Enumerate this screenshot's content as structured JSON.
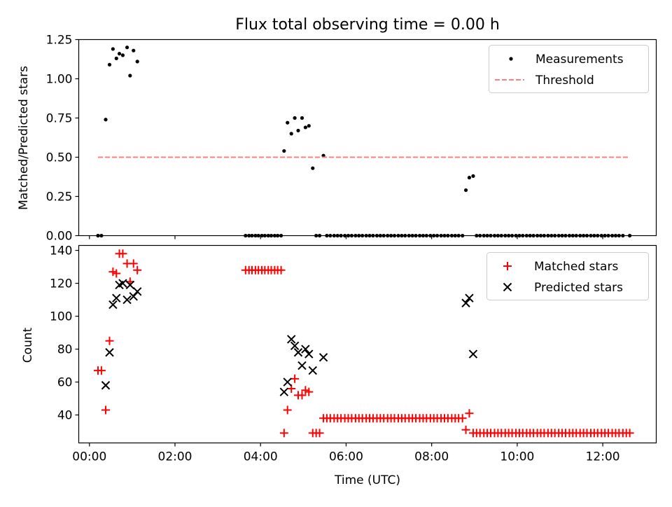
{
  "chart_data": [
    {
      "type": "scatter",
      "title": "Flux total observing time = 0.00 h",
      "xlabel": "",
      "ylabel": "Matched/Predicted stars",
      "xlim": [
        -0.25,
        13.25
      ],
      "ylim": [
        0,
        1.25
      ],
      "x_tick_values": [
        0,
        2,
        4,
        6,
        8,
        10,
        12
      ],
      "y_ticks": [
        "0.00",
        "0.25",
        "0.50",
        "0.75",
        "1.00",
        "1.25"
      ],
      "y_tick_values": [
        0,
        0.25,
        0.5,
        0.75,
        1.0,
        1.25
      ],
      "legend_position": "top-right",
      "series": [
        {
          "name": "Measurements",
          "marker": "dot",
          "color": "#000000",
          "points": [
            [
              0.2,
              0
            ],
            [
              0.28,
              0
            ],
            [
              0.38,
              0.74
            ],
            [
              0.47,
              1.09
            ],
            [
              0.55,
              1.19
            ],
            [
              0.63,
              1.13
            ],
            [
              0.7,
              1.16
            ],
            [
              0.78,
              1.15
            ],
            [
              0.88,
              1.2
            ],
            [
              0.95,
              1.02
            ],
            [
              1.03,
              1.18
            ],
            [
              1.12,
              1.11
            ],
            [
              3.65,
              0
            ],
            [
              3.73,
              0
            ],
            [
              3.8,
              0
            ],
            [
              3.88,
              0
            ],
            [
              3.95,
              0
            ],
            [
              4.03,
              0
            ],
            [
              4.1,
              0
            ],
            [
              4.18,
              0
            ],
            [
              4.25,
              0
            ],
            [
              4.33,
              0
            ],
            [
              4.4,
              0
            ],
            [
              4.48,
              0
            ],
            [
              4.55,
              0.54
            ],
            [
              4.63,
              0.72
            ],
            [
              4.72,
              0.65
            ],
            [
              4.8,
              0.75
            ],
            [
              4.88,
              0.67
            ],
            [
              4.97,
              0.75
            ],
            [
              5.05,
              0.69
            ],
            [
              5.13,
              0.7
            ],
            [
              5.22,
              0.43
            ],
            [
              5.3,
              0
            ],
            [
              5.38,
              0
            ],
            [
              5.47,
              0.51
            ],
            [
              5.55,
              0
            ],
            [
              5.63,
              0
            ],
            [
              5.72,
              0
            ],
            [
              5.8,
              0
            ],
            [
              5.88,
              0
            ],
            [
              5.97,
              0
            ],
            [
              6.05,
              0
            ],
            [
              6.13,
              0
            ],
            [
              6.22,
              0
            ],
            [
              6.3,
              0
            ],
            [
              6.38,
              0
            ],
            [
              6.47,
              0
            ],
            [
              6.55,
              0
            ],
            [
              6.63,
              0
            ],
            [
              6.72,
              0
            ],
            [
              6.8,
              0
            ],
            [
              6.88,
              0
            ],
            [
              6.97,
              0
            ],
            [
              7.05,
              0
            ],
            [
              7.13,
              0
            ],
            [
              7.22,
              0
            ],
            [
              7.3,
              0
            ],
            [
              7.38,
              0
            ],
            [
              7.47,
              0
            ],
            [
              7.55,
              0
            ],
            [
              7.63,
              0
            ],
            [
              7.72,
              0
            ],
            [
              7.8,
              0
            ],
            [
              7.88,
              0
            ],
            [
              7.97,
              0
            ],
            [
              8.05,
              0
            ],
            [
              8.13,
              0
            ],
            [
              8.22,
              0
            ],
            [
              8.3,
              0
            ],
            [
              8.38,
              0
            ],
            [
              8.47,
              0
            ],
            [
              8.55,
              0
            ],
            [
              8.63,
              0
            ],
            [
              8.72,
              0
            ],
            [
              8.8,
              0.29
            ],
            [
              8.88,
              0.37
            ],
            [
              8.97,
              0.38
            ],
            [
              9.05,
              0
            ],
            [
              9.13,
              0
            ],
            [
              9.22,
              0
            ],
            [
              9.3,
              0
            ],
            [
              9.38,
              0
            ],
            [
              9.47,
              0
            ],
            [
              9.55,
              0
            ],
            [
              9.63,
              0
            ],
            [
              9.72,
              0
            ],
            [
              9.8,
              0
            ],
            [
              9.88,
              0
            ],
            [
              9.97,
              0
            ],
            [
              10.05,
              0
            ],
            [
              10.13,
              0
            ],
            [
              10.22,
              0
            ],
            [
              10.3,
              0
            ],
            [
              10.38,
              0
            ],
            [
              10.47,
              0
            ],
            [
              10.55,
              0
            ],
            [
              10.63,
              0
            ],
            [
              10.72,
              0
            ],
            [
              10.8,
              0
            ],
            [
              10.88,
              0
            ],
            [
              10.97,
              0
            ],
            [
              11.05,
              0
            ],
            [
              11.13,
              0
            ],
            [
              11.22,
              0
            ],
            [
              11.3,
              0
            ],
            [
              11.38,
              0
            ],
            [
              11.47,
              0
            ],
            [
              11.55,
              0
            ],
            [
              11.63,
              0
            ],
            [
              11.72,
              0
            ],
            [
              11.8,
              0
            ],
            [
              11.88,
              0
            ],
            [
              11.97,
              0
            ],
            [
              12.05,
              0
            ],
            [
              12.13,
              0
            ],
            [
              12.22,
              0
            ],
            [
              12.3,
              0
            ],
            [
              12.38,
              0
            ],
            [
              12.47,
              0
            ],
            [
              12.63,
              0
            ]
          ]
        },
        {
          "name": "Threshold",
          "marker": "dashed-line",
          "color": "#ff7f7f",
          "points": [
            [
              0.2,
              0.5
            ],
            [
              12.63,
              0.5
            ]
          ]
        }
      ]
    },
    {
      "type": "scatter",
      "title": "",
      "xlabel": "Time (UTC)",
      "ylabel": "Count",
      "xlim": [
        -0.25,
        13.25
      ],
      "ylim": [
        23,
        143
      ],
      "x_ticks": [
        "00:00",
        "02:00",
        "04:00",
        "06:00",
        "08:00",
        "10:00",
        "12:00"
      ],
      "x_tick_values": [
        0,
        2,
        4,
        6,
        8,
        10,
        12
      ],
      "y_ticks": [
        "40",
        "60",
        "80",
        "100",
        "120",
        "140"
      ],
      "y_tick_values": [
        40,
        60,
        80,
        100,
        120,
        140
      ],
      "legend_position": "top-right",
      "series": [
        {
          "name": "Matched stars",
          "marker": "plus",
          "color": "#ff0000",
          "points": [
            [
              0.2,
              67
            ],
            [
              0.28,
              67
            ],
            [
              0.38,
              43
            ],
            [
              0.47,
              85
            ],
            [
              0.55,
              127
            ],
            [
              0.63,
              126
            ],
            [
              0.7,
              138
            ],
            [
              0.78,
              138
            ],
            [
              0.88,
              132
            ],
            [
              0.95,
              121
            ],
            [
              1.03,
              132
            ],
            [
              1.12,
              128
            ],
            [
              3.65,
              128
            ],
            [
              3.73,
              128
            ],
            [
              3.8,
              128
            ],
            [
              3.88,
              128
            ],
            [
              3.95,
              128
            ],
            [
              4.03,
              128
            ],
            [
              4.1,
              128
            ],
            [
              4.18,
              128
            ],
            [
              4.25,
              128
            ],
            [
              4.33,
              128
            ],
            [
              4.4,
              128
            ],
            [
              4.48,
              128
            ],
            [
              4.55,
              29
            ],
            [
              4.63,
              43
            ],
            [
              4.72,
              56
            ],
            [
              4.8,
              62
            ],
            [
              4.88,
              52
            ],
            [
              4.97,
              52
            ],
            [
              5.05,
              55
            ],
            [
              5.13,
              54
            ],
            [
              5.22,
              29
            ],
            [
              5.3,
              29
            ],
            [
              5.38,
              29
            ],
            [
              5.47,
              38
            ],
            [
              5.55,
              38
            ],
            [
              5.63,
              38
            ],
            [
              5.72,
              38
            ],
            [
              5.8,
              38
            ],
            [
              5.88,
              38
            ],
            [
              5.97,
              38
            ],
            [
              6.05,
              38
            ],
            [
              6.13,
              38
            ],
            [
              6.22,
              38
            ],
            [
              6.3,
              38
            ],
            [
              6.38,
              38
            ],
            [
              6.47,
              38
            ],
            [
              6.55,
              38
            ],
            [
              6.63,
              38
            ],
            [
              6.72,
              38
            ],
            [
              6.8,
              38
            ],
            [
              6.88,
              38
            ],
            [
              6.97,
              38
            ],
            [
              7.05,
              38
            ],
            [
              7.13,
              38
            ],
            [
              7.22,
              38
            ],
            [
              7.3,
              38
            ],
            [
              7.38,
              38
            ],
            [
              7.47,
              38
            ],
            [
              7.55,
              38
            ],
            [
              7.63,
              38
            ],
            [
              7.72,
              38
            ],
            [
              7.8,
              38
            ],
            [
              7.88,
              38
            ],
            [
              7.97,
              38
            ],
            [
              8.05,
              38
            ],
            [
              8.13,
              38
            ],
            [
              8.22,
              38
            ],
            [
              8.3,
              38
            ],
            [
              8.38,
              38
            ],
            [
              8.47,
              38
            ],
            [
              8.55,
              38
            ],
            [
              8.63,
              38
            ],
            [
              8.72,
              38
            ],
            [
              8.8,
              31
            ],
            [
              8.88,
              41
            ],
            [
              8.97,
              29
            ],
            [
              9.05,
              29
            ],
            [
              9.13,
              29
            ],
            [
              9.22,
              29
            ],
            [
              9.3,
              29
            ],
            [
              9.38,
              29
            ],
            [
              9.47,
              29
            ],
            [
              9.55,
              29
            ],
            [
              9.63,
              29
            ],
            [
              9.72,
              29
            ],
            [
              9.8,
              29
            ],
            [
              9.88,
              29
            ],
            [
              9.97,
              29
            ],
            [
              10.05,
              29
            ],
            [
              10.13,
              29
            ],
            [
              10.22,
              29
            ],
            [
              10.3,
              29
            ],
            [
              10.38,
              29
            ],
            [
              10.47,
              29
            ],
            [
              10.55,
              29
            ],
            [
              10.63,
              29
            ],
            [
              10.72,
              29
            ],
            [
              10.8,
              29
            ],
            [
              10.88,
              29
            ],
            [
              10.97,
              29
            ],
            [
              11.05,
              29
            ],
            [
              11.13,
              29
            ],
            [
              11.22,
              29
            ],
            [
              11.3,
              29
            ],
            [
              11.38,
              29
            ],
            [
              11.47,
              29
            ],
            [
              11.55,
              29
            ],
            [
              11.63,
              29
            ],
            [
              11.72,
              29
            ],
            [
              11.8,
              29
            ],
            [
              11.88,
              29
            ],
            [
              11.97,
              29
            ],
            [
              12.05,
              29
            ],
            [
              12.13,
              29
            ],
            [
              12.22,
              29
            ],
            [
              12.3,
              29
            ],
            [
              12.38,
              29
            ],
            [
              12.47,
              29
            ],
            [
              12.55,
              29
            ],
            [
              12.63,
              29
            ]
          ]
        },
        {
          "name": "Predicted stars",
          "marker": "x",
          "color": "#000000",
          "points": [
            [
              0.38,
              58
            ],
            [
              0.47,
              78
            ],
            [
              0.55,
              107
            ],
            [
              0.63,
              111
            ],
            [
              0.7,
              119
            ],
            [
              0.78,
              120
            ],
            [
              0.88,
              110
            ],
            [
              0.95,
              119
            ],
            [
              1.03,
              112
            ],
            [
              1.12,
              115
            ],
            [
              4.55,
              54
            ],
            [
              4.63,
              60
            ],
            [
              4.72,
              86
            ],
            [
              4.8,
              82
            ],
            [
              4.88,
              78
            ],
            [
              4.97,
              70
            ],
            [
              5.05,
              80
            ],
            [
              5.13,
              77
            ],
            [
              5.22,
              67
            ],
            [
              5.47,
              75
            ],
            [
              8.8,
              108
            ],
            [
              8.88,
              111
            ],
            [
              8.97,
              77
            ]
          ]
        }
      ]
    }
  ]
}
